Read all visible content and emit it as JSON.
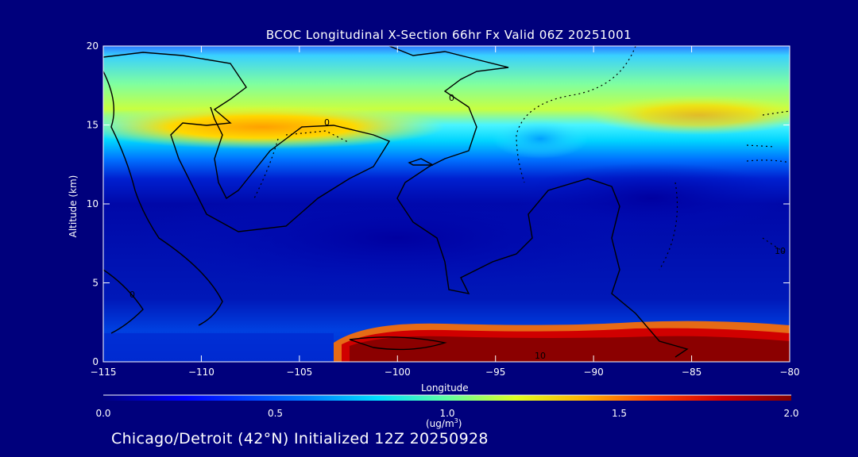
{
  "chart_data": {
    "type": "heatmap",
    "title": "BCOC Longitudinal X-Section 66hr  Fx Valid 06Z 20251001",
    "xlabel": "Longitude",
    "ylabel": "Altitude (km)",
    "xlim": [
      -115,
      -80
    ],
    "ylim": [
      0,
      20
    ],
    "x_ticks": [
      "-115",
      "-110",
      "-105",
      "-100",
      "-95",
      "-90",
      "-85",
      "-80"
    ],
    "y_ticks": [
      "0",
      "5",
      "10",
      "15",
      "20"
    ],
    "colorbar": {
      "range": [
        0.0,
        2.0
      ],
      "ticks": [
        "0.0",
        "0.5",
        "1.0",
        "1.5",
        "2.0"
      ],
      "unit_line1": "(ug/m",
      "unit_sup": "3",
      "unit_line2": ")"
    },
    "contour_labels": [
      "0",
      "0",
      "0",
      "10",
      "10"
    ],
    "features": [
      {
        "desc": "upper layer",
        "lon": [
          -115,
          -80
        ],
        "alt": [
          13,
          20
        ],
        "value": 0.9
      },
      {
        "desc": "peak aloft",
        "lon": [
          -115,
          -101
        ],
        "alt": [
          14.5,
          15.5
        ],
        "value": 1.4
      },
      {
        "desc": "surface plume",
        "lon": [
          -103,
          -80
        ],
        "alt": [
          0,
          2
        ],
        "value": 1.9
      }
    ],
    "colors": {
      "background": "#00007c",
      "low": "#000090",
      "high": "#8b0000"
    }
  },
  "footer": "Chicago/Detroit (42°N) Initialized 12Z 20250928"
}
